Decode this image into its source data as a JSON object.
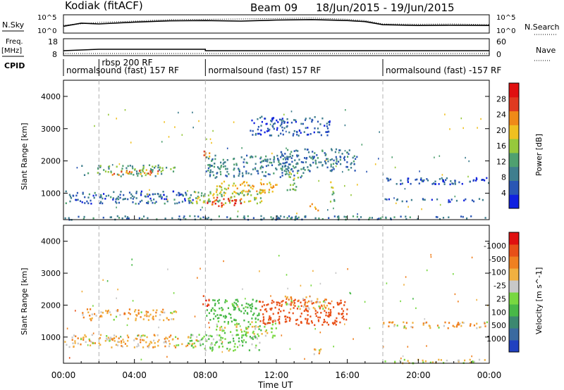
{
  "header": {
    "station": "Kodiak (fitACF)",
    "beam": "Beam 09",
    "date_range": "18/Jun/2015 - 19/Jun/2015"
  },
  "noise_panel": {
    "left_label": "N.Sky",
    "right_label": "N.Search",
    "y_ticks_left": [
      "10^5",
      "10^0"
    ],
    "y_ticks_right": [
      "10^5",
      "10^0"
    ]
  },
  "freq_panel": {
    "left_label_1": "Freq.",
    "left_label_2": "[MHz]",
    "right_label": "Nave",
    "y_ticks_left": [
      "18",
      "8"
    ],
    "y_ticks_right": [
      "60",
      "0"
    ]
  },
  "cpid_panel": {
    "label": "CPID",
    "segments": [
      {
        "start_hr": 0,
        "end_hr": 2,
        "name": "normalsound (fast) 157 RF"
      },
      {
        "start_hr": 2,
        "end_hr": 8,
        "name": "rbsp 200 RF"
      },
      {
        "start_hr": 8,
        "end_hr": 18,
        "name": "normalsound (fast) 157 RF"
      },
      {
        "start_hr": 18,
        "end_hr": 24,
        "name": "normalsound (fast) -157 RF"
      }
    ]
  },
  "x_axis": {
    "label": "Time UT",
    "ticks": [
      "00:00",
      "04:00",
      "08:00",
      "12:00",
      "16:00",
      "20:00",
      "00:00"
    ]
  },
  "power_colorbar": {
    "title": "Power [dB]",
    "ticks": [
      "4",
      "8",
      "12",
      "16",
      "20",
      "24",
      "28"
    ],
    "colors": [
      "#1020e0",
      "#2a56b4",
      "#3f7e8e",
      "#4fa070",
      "#96c83c",
      "#f0c020",
      "#f08a18",
      "#e03a20",
      "#e01010"
    ]
  },
  "velocity_colorbar": {
    "title": "Velocity [m s^-1]",
    "ticks": [
      "1000",
      "500",
      "100",
      "25",
      "-25",
      "-100",
      "-500",
      "-1000"
    ],
    "colors": [
      "#2040c0",
      "#3a6aa0",
      "#3c8870",
      "#48b848",
      "#78d840",
      "#c8c8c8",
      "#f0b040",
      "#f08020",
      "#e85018",
      "#e01010"
    ]
  },
  "chart_data": [
    {
      "type": "line",
      "title": "N.Sky / N.Search",
      "x_range_hr": [
        0,
        24
      ],
      "series": [
        {
          "name": "N.Sky",
          "x": [
            0,
            1,
            2,
            4,
            6,
            8,
            10,
            12,
            14,
            16,
            17,
            18,
            20,
            22,
            24
          ],
          "y": [
            0.35,
            0.55,
            0.5,
            0.62,
            0.7,
            0.72,
            0.68,
            0.75,
            0.78,
            0.72,
            0.65,
            0.45,
            0.4,
            0.42,
            0.4
          ]
        },
        {
          "name": "N.Search",
          "x": [
            0,
            2,
            4,
            6,
            8,
            10,
            12,
            14,
            16,
            17,
            18,
            20,
            22,
            24
          ],
          "y": [
            0.42,
            0.6,
            0.68,
            0.78,
            0.8,
            0.82,
            0.85,
            0.88,
            0.8,
            0.72,
            0.5,
            0.48,
            0.5,
            0.46
          ]
        }
      ]
    },
    {
      "type": "line",
      "title": "Freq / Nave",
      "series": [
        {
          "name": "Freq",
          "x": [
            0,
            2,
            8,
            8,
            24
          ],
          "y": [
            10.5,
            11.5,
            11.5,
            10.5,
            10.5
          ]
        },
        {
          "name": "Nave",
          "x": [
            0,
            24
          ],
          "y": [
            0,
            0
          ]
        }
      ],
      "ylim_freq": [
        8,
        18
      ],
      "ylim_nave": [
        0,
        60
      ]
    },
    {
      "type": "heatmap",
      "title": "Power [dB]",
      "xlabel": "Time UT",
      "ylabel": "Slant Range [km]",
      "x_range_hr": [
        0,
        24
      ],
      "ylim": [
        180,
        4500
      ],
      "y_ticks": [
        1000,
        2000,
        3000,
        4000
      ],
      "features": [
        {
          "t0": 1.0,
          "t1": 5.5,
          "r0": 1550,
          "r1": 1900,
          "value": 14
        },
        {
          "t0": 2.6,
          "t1": 5.4,
          "r0": 1580,
          "r1": 1760,
          "value": 26
        },
        {
          "t0": 5.2,
          "t1": 6.4,
          "r0": 1700,
          "r1": 1850,
          "value": 16
        },
        {
          "t0": 0.0,
          "t1": 7.5,
          "r0": 700,
          "r1": 1100,
          "value": 8
        },
        {
          "t0": 7.8,
          "t1": 8.2,
          "r0": 2000,
          "r1": 2400,
          "value": 28
        },
        {
          "t0": 7.0,
          "t1": 11.2,
          "r0": 700,
          "r1": 1100,
          "value": 18
        },
        {
          "t0": 8.0,
          "t1": 10.0,
          "r0": 600,
          "r1": 900,
          "value": 30
        },
        {
          "t0": 8.5,
          "t1": 12.0,
          "r0": 1000,
          "r1": 1400,
          "value": 22
        },
        {
          "t0": 8.0,
          "t1": 13.5,
          "r0": 1500,
          "r1": 2200,
          "value": 10
        },
        {
          "t0": 10.5,
          "t1": 15.0,
          "r0": 2800,
          "r1": 3400,
          "value": 6
        },
        {
          "t0": 12.0,
          "t1": 16.5,
          "r0": 1700,
          "r1": 2400,
          "value": 9
        },
        {
          "t0": 12.5,
          "t1": 13.2,
          "r0": 1100,
          "r1": 1700,
          "value": 18
        },
        {
          "t0": 13.8,
          "t1": 14.5,
          "r0": 480,
          "r1": 700,
          "value": 26
        },
        {
          "t0": 15.0,
          "t1": 15.3,
          "r0": 700,
          "r1": 1400,
          "value": 16
        },
        {
          "t0": 18.0,
          "t1": 24.0,
          "r0": 1300,
          "r1": 1500,
          "value": 6
        },
        {
          "t0": 18.0,
          "t1": 24.0,
          "r0": 750,
          "r1": 850,
          "value": 6
        },
        {
          "t0": 0.0,
          "t1": 24.0,
          "r0": 200,
          "r1": 320,
          "value": 10
        }
      ]
    },
    {
      "type": "heatmap",
      "title": "Velocity [m s^-1]",
      "xlabel": "Time UT",
      "ylabel": "Slant Range [km]",
      "x_range_hr": [
        0,
        24
      ],
      "ylim": [
        180,
        4500
      ],
      "y_ticks": [
        1000,
        2000,
        3000,
        4000
      ],
      "features": [
        {
          "t0": 1.0,
          "t1": 6.5,
          "r0": 1550,
          "r1": 1900,
          "value": 0
        },
        {
          "t0": 0.0,
          "t1": 7.5,
          "r0": 700,
          "r1": 1100,
          "value": 0
        },
        {
          "t0": 7.8,
          "t1": 8.2,
          "r0": 2000,
          "r1": 2400,
          "value": -300
        },
        {
          "t0": 7.0,
          "t1": 11.2,
          "r0": 600,
          "r1": 1100,
          "value": 80
        },
        {
          "t0": 8.5,
          "t1": 12.0,
          "r0": 1000,
          "r1": 1500,
          "value": 60
        },
        {
          "t0": 8.0,
          "t1": 11.0,
          "r0": 1500,
          "r1": 2200,
          "value": 150
        },
        {
          "t0": 11.0,
          "t1": 16.0,
          "r0": 1400,
          "r1": 2200,
          "value": -200
        },
        {
          "t0": 12.0,
          "t1": 15.0,
          "r0": 1900,
          "r1": 2300,
          "value": 0
        },
        {
          "t0": 13.8,
          "t1": 14.5,
          "r0": 480,
          "r1": 700,
          "value": 0
        },
        {
          "t0": 18.0,
          "t1": 24.0,
          "r0": 1300,
          "r1": 1500,
          "value": 0
        },
        {
          "t0": 18.0,
          "t1": 24.0,
          "r0": 200,
          "r1": 320,
          "value": 40
        }
      ]
    }
  ]
}
